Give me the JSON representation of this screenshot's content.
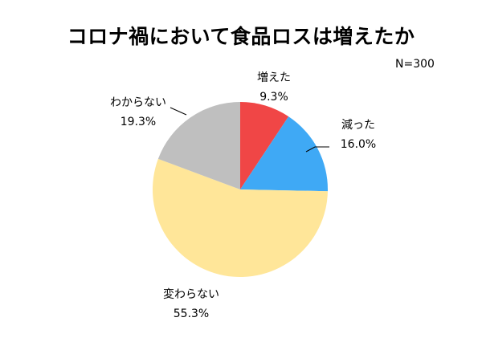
{
  "chart_data": {
    "type": "pie",
    "title": "コロナ禍において食品ロスは増えたか",
    "note": "N=300",
    "slices": [
      {
        "label": "増えた",
        "value": 9.3,
        "value_label": "9.3%",
        "color": "#f04646"
      },
      {
        "label": "減った",
        "value": 16.0,
        "value_label": "16.0%",
        "color": "#3fa9f5"
      },
      {
        "label": "変わらない",
        "value": 55.3,
        "value_label": "55.3%",
        "color": "#ffe699"
      },
      {
        "label": "わからない",
        "value": 19.3,
        "value_label": "19.3%",
        "color": "#bfbfbf"
      }
    ],
    "start_angle": "12 o'clock",
    "direction": "clockwise"
  }
}
